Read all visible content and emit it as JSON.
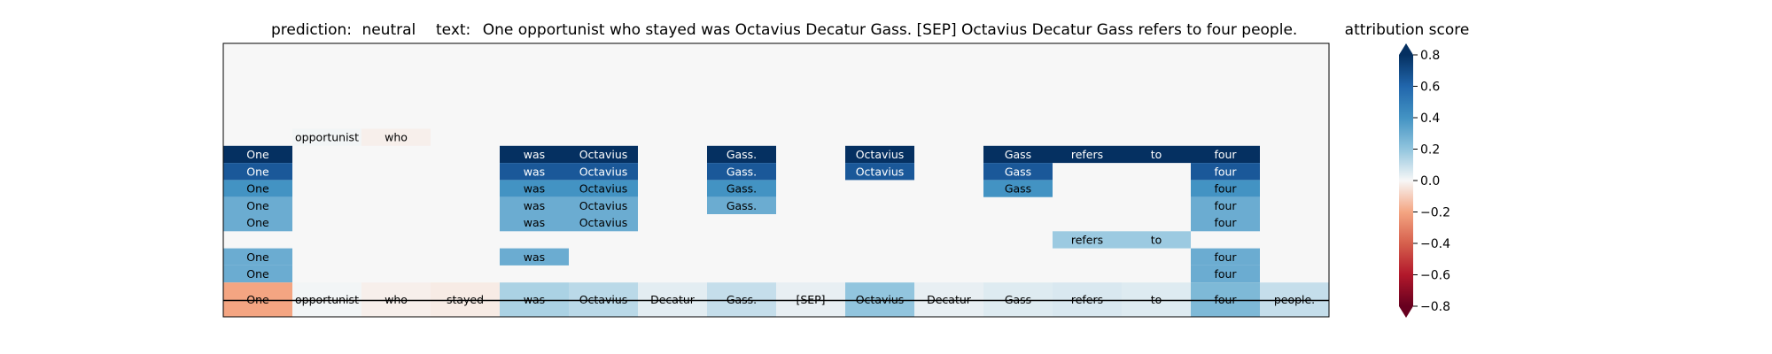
{
  "chart_data": {
    "type": "heatmap",
    "prediction_label": "prediction:",
    "prediction": "neutral",
    "text_label": "text:",
    "text": "One opportunist who stayed was Octavius Decatur Gass. [SEP] Octavius Decatur Gass refers to four people.",
    "colorbar_title": "attribution score",
    "colorbar_ticks": [
      "0.8",
      "0.6",
      "0.4",
      "0.2",
      "0.0",
      "−0.2",
      "−0.4",
      "−0.6",
      "−0.8"
    ],
    "colorbar_tick_values": [
      0.8,
      0.6,
      0.4,
      0.2,
      0.0,
      -0.2,
      -0.4,
      -0.6,
      -0.8
    ],
    "colorbar_range": [
      -0.8,
      0.8
    ],
    "colormap": "RdBu",
    "tokens": [
      "One",
      "opportunist",
      "who",
      "stayed",
      "was",
      "Octavius",
      "Decatur",
      "Gass.",
      "[SEP]",
      "Octavius",
      "Decatur",
      "Gass",
      "refers",
      "to",
      "four",
      "people."
    ],
    "rows": [
      [
        null,
        null,
        null,
        null,
        null,
        null,
        null,
        null,
        null,
        null,
        null,
        null,
        null,
        null,
        null,
        null
      ],
      [
        null,
        null,
        null,
        null,
        null,
        null,
        null,
        null,
        null,
        null,
        null,
        null,
        null,
        null,
        null,
        null
      ],
      [
        null,
        null,
        null,
        null,
        null,
        null,
        null,
        null,
        null,
        null,
        null,
        null,
        null,
        null,
        null,
        null
      ],
      [
        null,
        null,
        null,
        null,
        null,
        null,
        null,
        null,
        null,
        null,
        null,
        null,
        null,
        null,
        null,
        null
      ],
      [
        null,
        null,
        null,
        null,
        null,
        null,
        null,
        null,
        null,
        null,
        null,
        null,
        null,
        null,
        null,
        null
      ],
      [
        null,
        0.01,
        -0.02,
        null,
        null,
        null,
        null,
        null,
        null,
        null,
        null,
        null,
        null,
        null,
        null,
        null
      ],
      [
        0.8,
        null,
        null,
        null,
        0.8,
        0.8,
        null,
        0.8,
        null,
        0.8,
        null,
        0.8,
        0.8,
        0.8,
        0.8,
        null
      ],
      [
        0.65,
        null,
        null,
        null,
        0.65,
        0.65,
        null,
        0.65,
        null,
        0.65,
        null,
        0.65,
        null,
        null,
        0.65,
        null
      ],
      [
        0.4,
        null,
        null,
        null,
        0.4,
        0.4,
        null,
        0.4,
        null,
        null,
        null,
        0.4,
        null,
        null,
        0.4,
        null
      ],
      [
        0.3,
        null,
        null,
        null,
        0.3,
        0.3,
        null,
        0.3,
        null,
        null,
        null,
        null,
        null,
        null,
        0.3,
        null
      ],
      [
        0.3,
        null,
        null,
        null,
        0.3,
        0.3,
        null,
        null,
        null,
        null,
        null,
        null,
        null,
        null,
        0.3,
        null
      ],
      [
        null,
        null,
        null,
        null,
        null,
        null,
        null,
        null,
        null,
        null,
        null,
        null,
        0.18,
        0.18,
        null,
        null
      ],
      [
        0.3,
        null,
        null,
        null,
        0.3,
        null,
        null,
        null,
        null,
        null,
        null,
        null,
        null,
        null,
        0.3,
        null
      ],
      [
        0.3,
        null,
        null,
        null,
        null,
        null,
        null,
        null,
        null,
        null,
        null,
        null,
        null,
        null,
        0.3,
        null
      ]
    ],
    "summary_row": [
      -0.2,
      0.01,
      -0.02,
      -0.03,
      0.15,
      0.12,
      0.04,
      0.1,
      0.03,
      0.2,
      0.03,
      0.05,
      0.06,
      0.05,
      0.25,
      0.1
    ]
  }
}
